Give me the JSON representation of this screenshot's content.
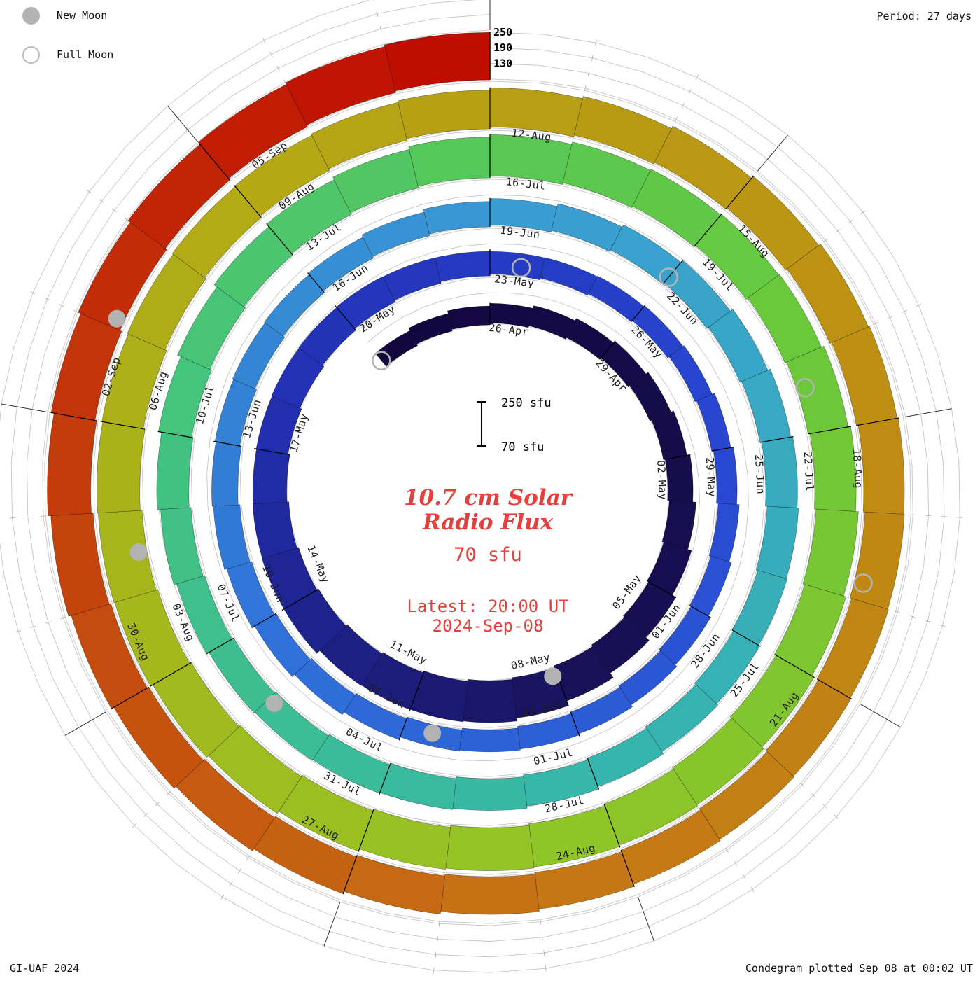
{
  "meta": {
    "period_label": "Period: 27 days",
    "credit": "GI-UAF 2024",
    "footer": "Condegram plotted Sep 08 at 00:02 UT"
  },
  "legend": {
    "new_moon": "New Moon",
    "full_moon": "Full Moon"
  },
  "center": {
    "title_line1": "10.7 cm Solar",
    "title_line2": "Radio Flux",
    "flux_label": "70 sfu",
    "latest_line1": "Latest: 20:00 UT",
    "latest_line2": "2024-Sep-08",
    "scale_top": "250 sfu",
    "scale_bottom": "70 sfu",
    "accent_color": "#e5403c"
  },
  "axis": {
    "radial_ticks": [
      {
        "label": "250",
        "value": 250
      },
      {
        "label": "190",
        "value": 190
      },
      {
        "label": "130",
        "value": 130
      }
    ]
  },
  "chart_data": {
    "type": "spiral-bar-condegram",
    "title": "10.7 cm Solar Radio Flux",
    "start_date": "2024-04-24",
    "end_date": "2024-09-08",
    "days_per_revolution": 27,
    "flux_baseline_sfu": 70,
    "flux_cap_sfu": 250,
    "grid_levels_sfu": [
      70,
      130,
      190,
      250
    ],
    "moon_marker_color": "#b3b3b3",
    "date_labels": [
      {
        "label": "26-Apr",
        "day_index": 2
      },
      {
        "label": "29-Apr",
        "day_index": 5
      },
      {
        "label": "02-May",
        "day_index": 8
      },
      {
        "label": "05-May",
        "day_index": 11
      },
      {
        "label": "08-May",
        "day_index": 14
      },
      {
        "label": "11-May",
        "day_index": 17
      },
      {
        "label": "14-May",
        "day_index": 20
      },
      {
        "label": "17-May",
        "day_index": 23
      },
      {
        "label": "20-May",
        "day_index": 26
      },
      {
        "label": "23-May",
        "day_index": 29
      },
      {
        "label": "26-May",
        "day_index": 32
      },
      {
        "label": "29-May",
        "day_index": 35
      },
      {
        "label": "01-Jun",
        "day_index": 38
      },
      {
        "label": "04-Jun",
        "day_index": 41
      },
      {
        "label": "07-Jun",
        "day_index": 44
      },
      {
        "label": "10-Jun",
        "day_index": 47
      },
      {
        "label": "13-Jun",
        "day_index": 50
      },
      {
        "label": "16-Jun",
        "day_index": 53
      },
      {
        "label": "19-Jun",
        "day_index": 56
      },
      {
        "label": "22-Jun",
        "day_index": 59
      },
      {
        "label": "25-Jun",
        "day_index": 62
      },
      {
        "label": "28-Jun",
        "day_index": 65
      },
      {
        "label": "01-Jul",
        "day_index": 68
      },
      {
        "label": "04-Jul",
        "day_index": 71
      },
      {
        "label": "07-Jul",
        "day_index": 74
      },
      {
        "label": "10-Jul",
        "day_index": 77
      },
      {
        "label": "13-Jul",
        "day_index": 80
      },
      {
        "label": "16-Jul",
        "day_index": 83
      },
      {
        "label": "19-Jul",
        "day_index": 86
      },
      {
        "label": "22-Jul",
        "day_index": 89
      },
      {
        "label": "25-Jul",
        "day_index": 92
      },
      {
        "label": "28-Jul",
        "day_index": 95
      },
      {
        "label": "31-Jul",
        "day_index": 98
      },
      {
        "label": "03-Aug",
        "day_index": 101
      },
      {
        "label": "06-Aug",
        "day_index": 104
      },
      {
        "label": "09-Aug",
        "day_index": 107
      },
      {
        "label": "12-Aug",
        "day_index": 110
      },
      {
        "label": "15-Aug",
        "day_index": 113
      },
      {
        "label": "18-Aug",
        "day_index": 116
      },
      {
        "label": "21-Aug",
        "day_index": 119
      },
      {
        "label": "24-Aug",
        "day_index": 122
      },
      {
        "label": "27-Aug",
        "day_index": 125
      },
      {
        "label": "30-Aug",
        "day_index": 128
      },
      {
        "label": "02-Sep",
        "day_index": 131
      },
      {
        "label": "05-Sep",
        "day_index": 134
      }
    ],
    "daily_flux": [
      135,
      139,
      143,
      146,
      150,
      153,
      155,
      158,
      162,
      167,
      173,
      181,
      190,
      200,
      214,
      226,
      231,
      227,
      221,
      216,
      224,
      217,
      209,
      200,
      194,
      189,
      184,
      179,
      171,
      164,
      157,
      151,
      147,
      144,
      142,
      145,
      148,
      151,
      153,
      156,
      158,
      160,
      158,
      155,
      152,
      156,
      161,
      166,
      170,
      172,
      170,
      167,
      164,
      161,
      160,
      163,
      168,
      172,
      176,
      179,
      183,
      187,
      190,
      192,
      191,
      188,
      186,
      185,
      188,
      190,
      192,
      190,
      187,
      183,
      180,
      183,
      187,
      193,
      199,
      206,
      213,
      219,
      223,
      227,
      229,
      231,
      229,
      226,
      223,
      226,
      229,
      233,
      236,
      239,
      241,
      239,
      237,
      235,
      233,
      236,
      239,
      241,
      243,
      239,
      235,
      231,
      228,
      225,
      222,
      220,
      219,
      221,
      223,
      226,
      229,
      231,
      229,
      226,
      222,
      218,
      215,
      212,
      210,
      212,
      215,
      218,
      221,
      223,
      226,
      229,
      233,
      237,
      241,
      245,
      249,
      253,
      256,
      258
    ],
    "color_stops": [
      {
        "t": 0.0,
        "color": "#12073f"
      },
      {
        "t": 0.1,
        "color": "#181055"
      },
      {
        "t": 0.18,
        "color": "#2230b4"
      },
      {
        "t": 0.26,
        "color": "#2847d2"
      },
      {
        "t": 0.34,
        "color": "#2f6fd8"
      },
      {
        "t": 0.42,
        "color": "#3a9ed2"
      },
      {
        "t": 0.5,
        "color": "#35b6ac"
      },
      {
        "t": 0.57,
        "color": "#44c47c"
      },
      {
        "t": 0.64,
        "color": "#67c93c"
      },
      {
        "t": 0.71,
        "color": "#96c424"
      },
      {
        "t": 0.78,
        "color": "#b2ab16"
      },
      {
        "t": 0.84,
        "color": "#bd9212"
      },
      {
        "t": 0.9,
        "color": "#c67615"
      },
      {
        "t": 0.95,
        "color": "#c4430c"
      },
      {
        "t": 1.0,
        "color": "#bf0d00"
      }
    ],
    "new_moons": [
      {
        "date": "2024-05-08",
        "day_index": 14.1
      },
      {
        "date": "2024-06-06",
        "day_index": 43.5
      },
      {
        "date": "2024-07-05",
        "day_index": 72.9
      },
      {
        "date": "2024-08-04",
        "day_index": 102.5
      },
      {
        "date": "2024-09-03",
        "day_index": 132.1
      }
    ],
    "full_moons": [
      {
        "date": "2024-04-23",
        "day_index": -1.0
      },
      {
        "date": "2024-05-23",
        "day_index": 29.6
      },
      {
        "date": "2024-06-22",
        "day_index": 59.0
      },
      {
        "date": "2024-07-21",
        "day_index": 88.4
      },
      {
        "date": "2024-08-19",
        "day_index": 117.8
      }
    ]
  }
}
